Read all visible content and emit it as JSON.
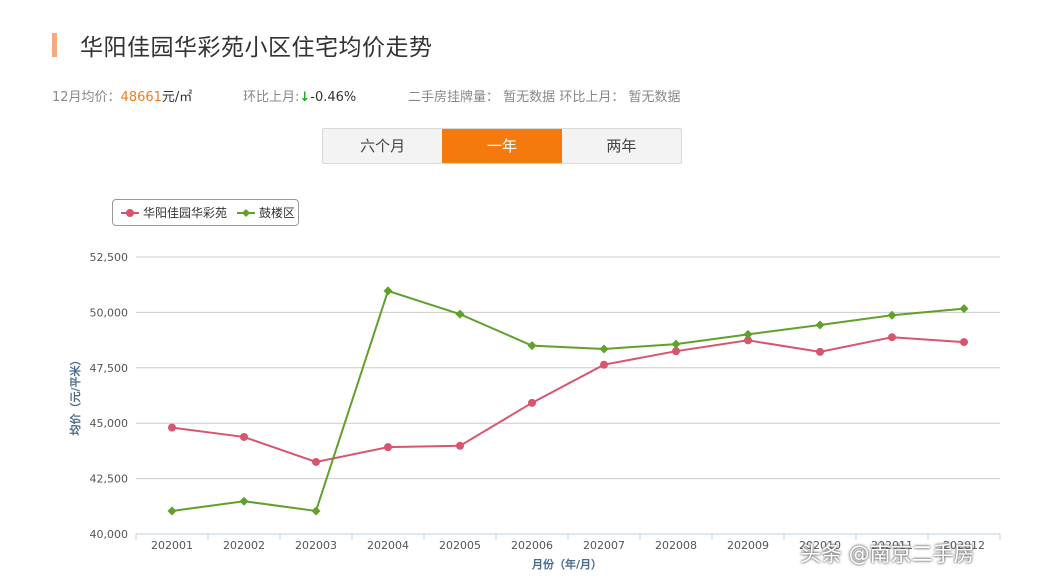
{
  "page": {
    "title": "华阳佳园华彩苑小区住宅均价走势"
  },
  "stats": {
    "avg_label": "12月均价：",
    "avg_value": "48661",
    "avg_unit": "元/㎡",
    "mom_label": "环比上月:",
    "mom_arrow": "↓",
    "mom_value": "-0.46%",
    "listing_label": "二手房挂牌量：",
    "listing_value": "暂无数据",
    "listing_mom_label": "环比上月：",
    "listing_mom_value": "暂无数据"
  },
  "tabs": [
    "六个月",
    "一年",
    "两年"
  ],
  "active_tab": 1,
  "watermark": "头条 @南京二手房",
  "colors": {
    "series1": "#d9546e",
    "series2": "#5fa12a",
    "active_tab": "#f47a0e",
    "price": "#f07d1a"
  },
  "chart_data": {
    "type": "line",
    "categories": [
      "202001",
      "202002",
      "202003",
      "202004",
      "202005",
      "202006",
      "202007",
      "202008",
      "202009",
      "202010",
      "202011",
      "202012"
    ],
    "category_labels": [
      "202001",
      "202002",
      "202003",
      "202004",
      "202005",
      "202006",
      "202007",
      "202008",
      "202009",
      "202010",
      "202011",
      "202012"
    ],
    "series": [
      {
        "name": "华阳佳园华彩苑",
        "color": "#d9546e",
        "marker": "circle",
        "values": [
          44800,
          44380,
          43250,
          43920,
          43980,
          45920,
          47640,
          48250,
          48740,
          48220,
          48880,
          48661
        ]
      },
      {
        "name": "鼓楼区",
        "color": "#5fa12a",
        "marker": "diamond",
        "values": [
          41040,
          41480,
          41040,
          50970,
          49920,
          48500,
          48350,
          48570,
          49010,
          49430,
          49870,
          50170
        ]
      }
    ],
    "xlabel": "月份（年/月）",
    "ylabel": "均价（元/平米）",
    "ylim": [
      40000,
      52500
    ],
    "yticks": [
      40000,
      42500,
      45000,
      47500,
      50000,
      52500
    ],
    "ytick_labels": [
      "40,000",
      "42,500",
      "45,000",
      "47,500",
      "50,000",
      "52,500"
    ],
    "grid": true,
    "legend_position": "top-left"
  }
}
